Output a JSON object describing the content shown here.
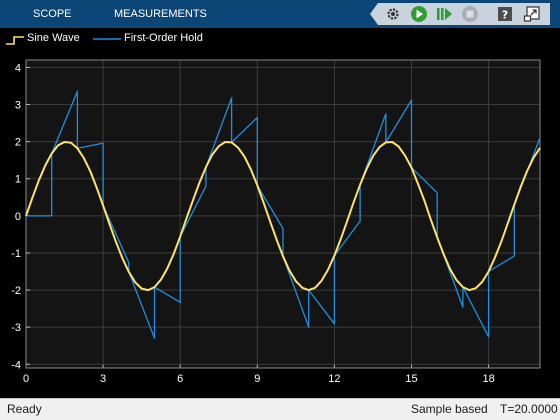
{
  "toolbar": {
    "tabs": [
      {
        "label": "SCOPE"
      },
      {
        "label": "MEASUREMENTS"
      }
    ],
    "icons": [
      "settings-icon",
      "run-icon",
      "step-forward-icon",
      "stop-icon",
      "help-icon",
      "undock-icon"
    ]
  },
  "colors": {
    "toolbar_bg": "#0c4677",
    "plot_bg": "#141414",
    "grid": "#3c3c3c",
    "sine": "#ffe26b",
    "hold": "#1e8fe0"
  },
  "legend": {
    "items": [
      {
        "label": "Sine Wave",
        "color": "#ffe26b"
      },
      {
        "label": "First-Order Hold",
        "color": "#1e8fe0"
      }
    ]
  },
  "chart_data": {
    "type": "line",
    "xlim": [
      0,
      20
    ],
    "ylim": [
      -4.1,
      4.2
    ],
    "xticks": [
      0,
      3,
      6,
      9,
      12,
      15,
      18
    ],
    "yticks": [
      4,
      3,
      2,
      1,
      0,
      -1,
      -2,
      -3,
      -4
    ],
    "grid": true,
    "legend_position": "top-left",
    "series": [
      {
        "name": "Sine Wave",
        "color": "#ffe26b",
        "function": "2*sin(x)",
        "x": [
          0,
          0.25,
          0.5,
          0.75,
          1,
          1.25,
          1.5,
          1.75,
          2,
          2.25,
          2.5,
          2.75,
          3,
          3.25,
          3.5,
          3.75,
          4,
          4.25,
          4.5,
          4.75,
          5,
          5.25,
          5.5,
          5.75,
          6,
          6.25,
          6.5,
          6.75,
          7,
          7.25,
          7.5,
          7.75,
          8,
          8.25,
          8.5,
          8.75,
          9,
          9.25,
          9.5,
          9.75,
          10,
          10.25,
          10.5,
          10.75,
          11,
          11.25,
          11.5,
          11.75,
          12,
          12.25,
          12.5,
          12.75,
          13,
          13.25,
          13.5,
          13.75,
          14,
          14.25,
          14.5,
          14.75,
          15,
          15.25,
          15.5,
          15.75,
          16,
          16.25,
          16.5,
          16.75,
          17,
          17.25,
          17.5,
          17.75,
          18,
          18.25,
          18.5,
          18.75,
          19,
          19.25,
          19.5,
          19.75,
          20
        ],
        "y": [
          0,
          0.49,
          0.96,
          1.36,
          1.68,
          1.9,
          1.99,
          1.97,
          1.82,
          1.56,
          1.2,
          0.76,
          0.28,
          -0.22,
          -0.7,
          -1.14,
          -1.51,
          -1.79,
          -1.96,
          -2,
          -1.92,
          -1.72,
          -1.41,
          -1.02,
          -0.56,
          -0.06,
          0.43,
          0.9,
          1.31,
          1.65,
          1.88,
          1.99,
          1.98,
          1.84,
          1.6,
          1.25,
          0.82,
          0.35,
          -0.15,
          -0.64,
          -1.09,
          -1.47,
          -1.76,
          -1.94,
          -2,
          -1.94,
          -1.75,
          -1.45,
          -1.07,
          -0.62,
          -0.13,
          0.37,
          0.84,
          1.26,
          1.61,
          1.85,
          1.98,
          1.99,
          1.87,
          1.62,
          1.3,
          0.87,
          0.41,
          -0.1,
          -0.58,
          -1.03,
          -1.43,
          -1.73,
          -1.92,
          -2,
          -1.95,
          -1.78,
          -1.5,
          -1.12,
          -0.68,
          -0.19,
          0.3,
          0.78,
          1.21,
          1.57,
          1.83
        ]
      },
      {
        "name": "First-Order Hold",
        "color": "#1e8fe0",
        "x": [
          0,
          1,
          1,
          2,
          2,
          3,
          3,
          4,
          4,
          5,
          5,
          6,
          6,
          7,
          7,
          8,
          8,
          9,
          9,
          10,
          10,
          11,
          11,
          12,
          12,
          13,
          13,
          14,
          14,
          15,
          15,
          16,
          16,
          17,
          17,
          18,
          18,
          19,
          19,
          20
        ],
        "y": [
          0,
          0,
          1.68,
          3.36,
          1.82,
          1.96,
          0.28,
          -1.26,
          -1.51,
          -3.3,
          -1.92,
          -2.33,
          -0.56,
          0.8,
          1.31,
          3.18,
          1.98,
          2.65,
          0.82,
          -0.34,
          -1.09,
          -3.0,
          -2.0,
          -2.91,
          -1.07,
          -0.14,
          0.84,
          2.75,
          1.98,
          3.12,
          1.3,
          0.62,
          -0.58,
          -2.46,
          -1.92,
          -3.26,
          -1.5,
          -1.08,
          0.3,
          2.1
        ]
      }
    ]
  },
  "status": {
    "left": "Ready",
    "mode": "Sample based",
    "time": "T=20.0000"
  }
}
